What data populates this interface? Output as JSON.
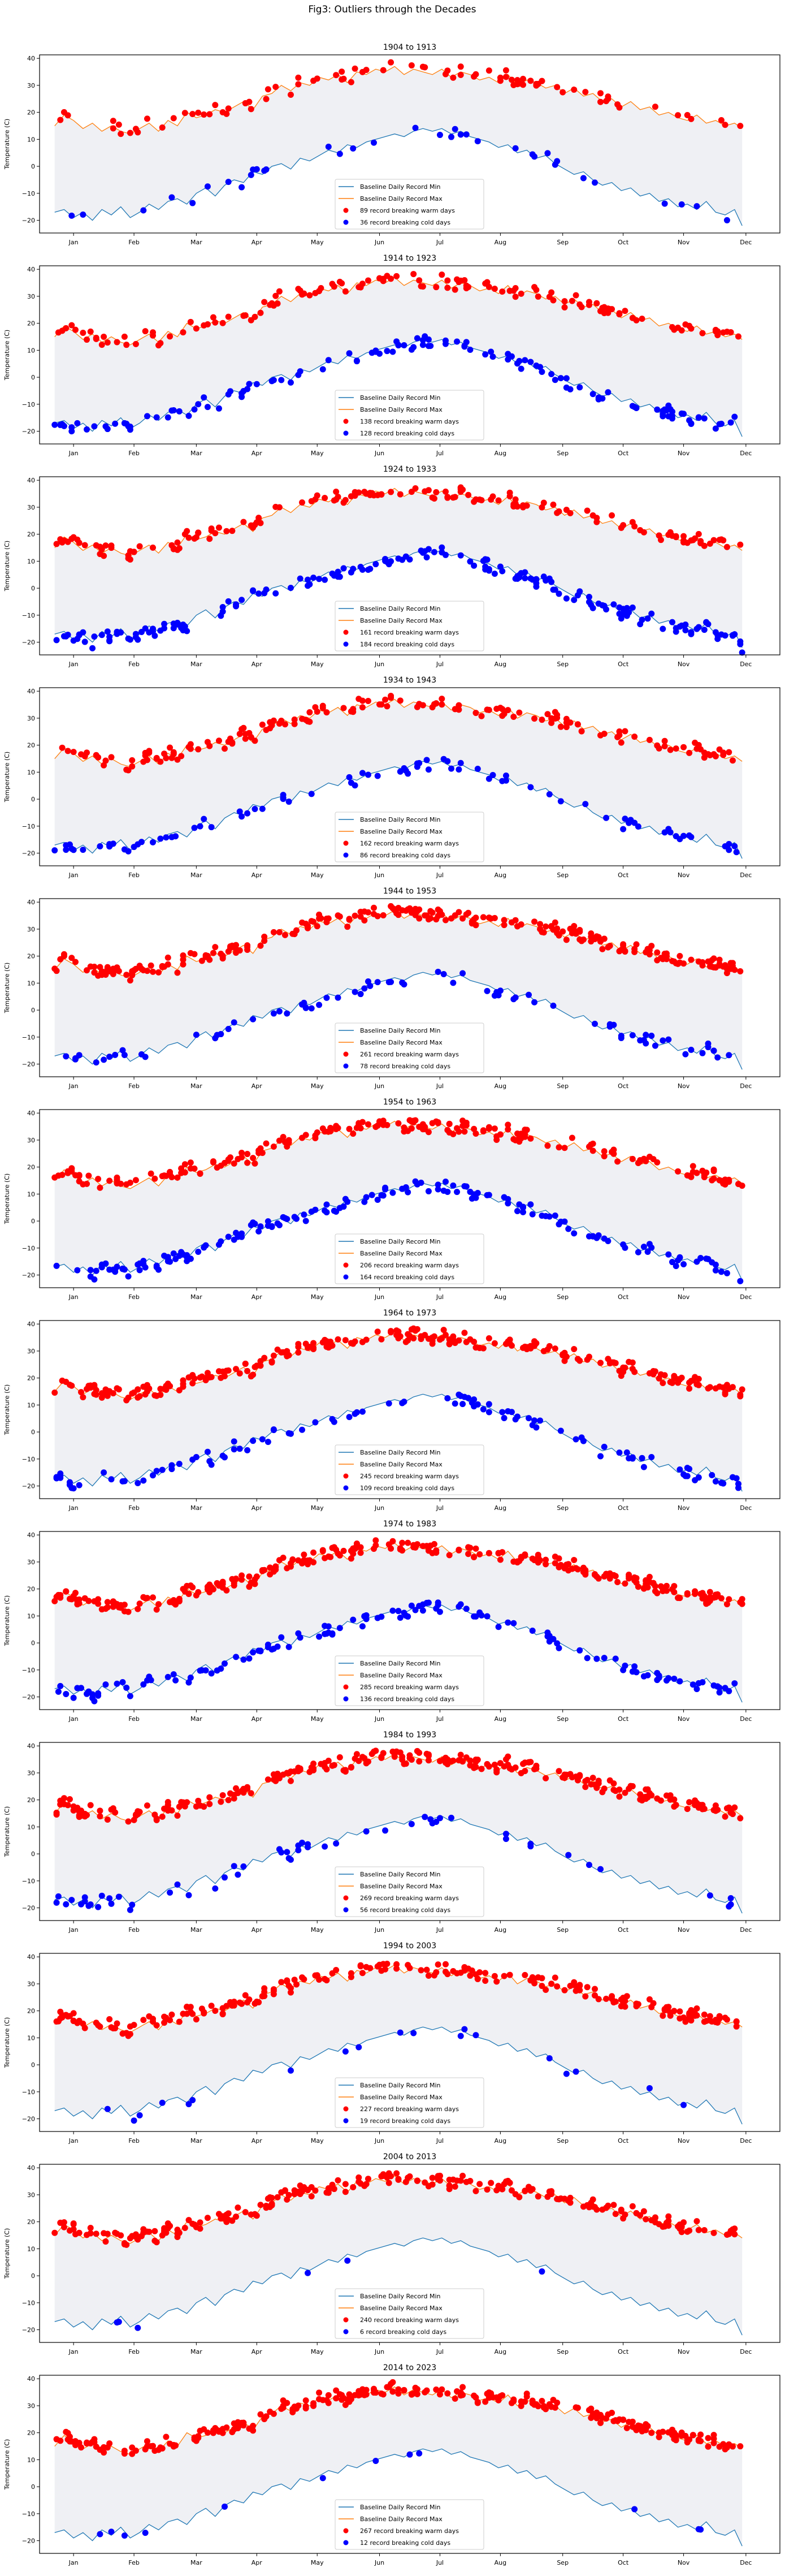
{
  "chart_data": {
    "type": "line",
    "title": "Fig3: Outliers through the Decades",
    "ylabel": "Temperature (C)",
    "xlabel": "",
    "ylim": [
      -24.7,
      41.3
    ],
    "xlim_days": [
      -8,
      384
    ],
    "yticks": [
      40,
      30,
      20,
      10,
      0,
      -10,
      -20
    ],
    "ytick_labels": [
      "40",
      "30",
      "20",
      "10",
      "0",
      "−10",
      "−20"
    ],
    "xtick_days": [
      10,
      42,
      75,
      107,
      139,
      172,
      204,
      236,
      269,
      301,
      333,
      366
    ],
    "xtick_labels": [
      "Jan",
      "Feb",
      "Mar",
      "Apr",
      "May",
      "Jun",
      "Jul",
      "Aug",
      "Sep",
      "Oct",
      "Nov",
      "Dec"
    ],
    "grid": false,
    "legend_placement": "lower-center",
    "colors": {
      "min_line": "#1f77b4",
      "max_line": "#ff7f0e",
      "fill": "#eff0f4",
      "warm": "#ff0000",
      "cold": "#0000ff"
    },
    "baseline": {
      "day": [
        0,
        5,
        10,
        15,
        20,
        25,
        30,
        35,
        40,
        45,
        50,
        55,
        60,
        65,
        70,
        75,
        80,
        85,
        90,
        95,
        100,
        105,
        110,
        115,
        120,
        125,
        130,
        135,
        140,
        145,
        150,
        155,
        160,
        165,
        170,
        175,
        180,
        185,
        190,
        195,
        200,
        205,
        210,
        215,
        220,
        225,
        230,
        235,
        240,
        245,
        250,
        255,
        260,
        265,
        270,
        275,
        280,
        285,
        290,
        295,
        300,
        305,
        310,
        315,
        320,
        325,
        330,
        335,
        340,
        345,
        350,
        355,
        360,
        364
      ],
      "max": [
        15,
        19,
        17,
        14,
        16,
        13,
        15,
        13,
        12,
        14,
        16,
        13,
        17,
        15,
        20,
        18,
        19,
        21,
        20,
        22,
        24,
        21,
        26,
        27,
        30,
        28,
        31,
        30,
        33,
        32,
        34,
        31,
        35,
        34,
        36,
        35,
        37,
        34,
        36,
        35,
        34,
        36,
        33,
        35,
        34,
        32,
        33,
        31,
        34,
        30,
        32,
        31,
        29,
        30,
        27,
        29,
        26,
        27,
        24,
        25,
        22,
        24,
        21,
        22,
        19,
        20,
        18,
        17,
        19,
        16,
        17,
        15,
        16,
        14
      ],
      "min": [
        -17,
        -16,
        -19,
        -17,
        -20,
        -16,
        -18,
        -15,
        -19,
        -17,
        -14,
        -16,
        -13,
        -12,
        -14,
        -10,
        -8,
        -11,
        -7,
        -5,
        -6,
        -2,
        -3,
        0,
        1,
        -1,
        3,
        2,
        4,
        6,
        5,
        8,
        7,
        9,
        10,
        11,
        12,
        11,
        13,
        14,
        13,
        14,
        12,
        13,
        11,
        10,
        9,
        7,
        8,
        5,
        6,
        3,
        4,
        1,
        -1,
        -3,
        -2,
        -5,
        -7,
        -6,
        -9,
        -8,
        -11,
        -10,
        -13,
        -12,
        -15,
        -14,
        -16,
        -13,
        -17,
        -18,
        -16,
        -22
      ]
    },
    "legend": {
      "min_label": "Baseline Daily Record Min",
      "max_label": "Baseline Daily Record Max"
    },
    "panels": [
      {
        "title": "1904 to 1913",
        "warm_count": 89,
        "cold_count": 36,
        "warm_label": "89 record breaking warm days",
        "cold_label": "36 record breaking cold days"
      },
      {
        "title": "1914 to 1923",
        "warm_count": 138,
        "cold_count": 128,
        "warm_label": "138 record breaking warm days",
        "cold_label": "128 record breaking cold days"
      },
      {
        "title": "1924 to 1933",
        "warm_count": 161,
        "cold_count": 184,
        "warm_label": "161 record breaking warm days",
        "cold_label": "184 record breaking cold days"
      },
      {
        "title": "1934 to 1943",
        "warm_count": 162,
        "cold_count": 86,
        "warm_label": "162 record breaking warm days",
        "cold_label": "86 record breaking cold days"
      },
      {
        "title": "1944 to 1953",
        "warm_count": 261,
        "cold_count": 78,
        "warm_label": "261 record breaking warm days",
        "cold_label": "78 record breaking cold days"
      },
      {
        "title": "1954 to 1963",
        "warm_count": 206,
        "cold_count": 164,
        "warm_label": "206 record breaking warm days",
        "cold_label": "164 record breaking cold days"
      },
      {
        "title": "1964 to 1973",
        "warm_count": 245,
        "cold_count": 109,
        "warm_label": "245 record breaking warm days",
        "cold_label": "109 record breaking cold days"
      },
      {
        "title": "1974 to 1983",
        "warm_count": 285,
        "cold_count": 136,
        "warm_label": "285 record breaking warm days",
        "cold_label": "136 record breaking cold days"
      },
      {
        "title": "1984 to 1993",
        "warm_count": 269,
        "cold_count": 56,
        "warm_label": "269 record breaking warm days",
        "cold_label": "56 record breaking cold days"
      },
      {
        "title": "1994 to 2003",
        "warm_count": 227,
        "cold_count": 19,
        "warm_label": "227 record breaking warm days",
        "cold_label": "19 record breaking cold days"
      },
      {
        "title": "2004 to 2013",
        "warm_count": 240,
        "cold_count": 6,
        "warm_label": "240 record breaking warm days",
        "cold_label": "6 record breaking cold days"
      },
      {
        "title": "2014 to 2023",
        "warm_count": 267,
        "cold_count": 12,
        "warm_label": "267 record breaking warm days",
        "cold_label": "12 record breaking cold days"
      }
    ]
  }
}
